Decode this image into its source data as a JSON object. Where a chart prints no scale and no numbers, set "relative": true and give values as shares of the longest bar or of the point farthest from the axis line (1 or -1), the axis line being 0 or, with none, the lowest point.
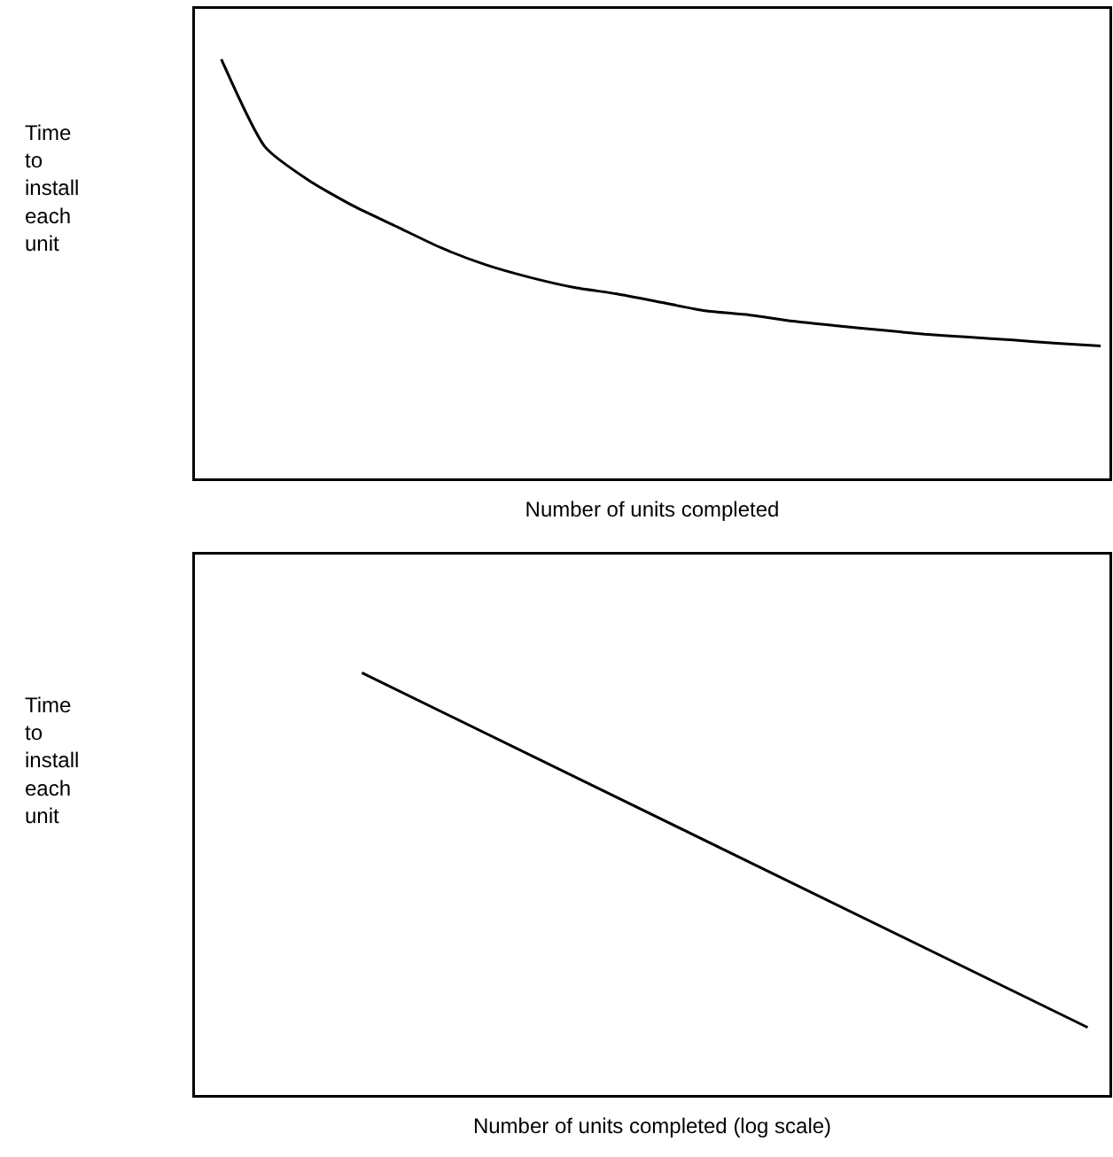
{
  "chart_data": [
    {
      "type": "line",
      "relative": true,
      "xlabel": "Number of units completed",
      "ylabel": "Time to install each unit",
      "color": "#000000",
      "categories": [
        null,
        null,
        null,
        null,
        null,
        null,
        null,
        null,
        null,
        null,
        null,
        null,
        null,
        null,
        null,
        null,
        null,
        null,
        null,
        null,
        null
      ],
      "values": [
        1.0,
        0.79,
        0.71,
        0.65,
        0.6,
        0.55,
        0.51,
        0.48,
        0.456,
        0.44,
        0.42,
        0.4,
        0.39,
        0.375,
        0.364,
        0.354,
        0.344,
        0.337,
        0.33,
        0.322,
        0.316
      ]
    },
    {
      "type": "line",
      "relative": true,
      "xlabel": "Number of units completed (log scale)",
      "ylabel": "Time to install each unit",
      "color": "#000000",
      "categories": [
        null,
        null
      ],
      "values": [
        1.0,
        0.16
      ]
    }
  ]
}
